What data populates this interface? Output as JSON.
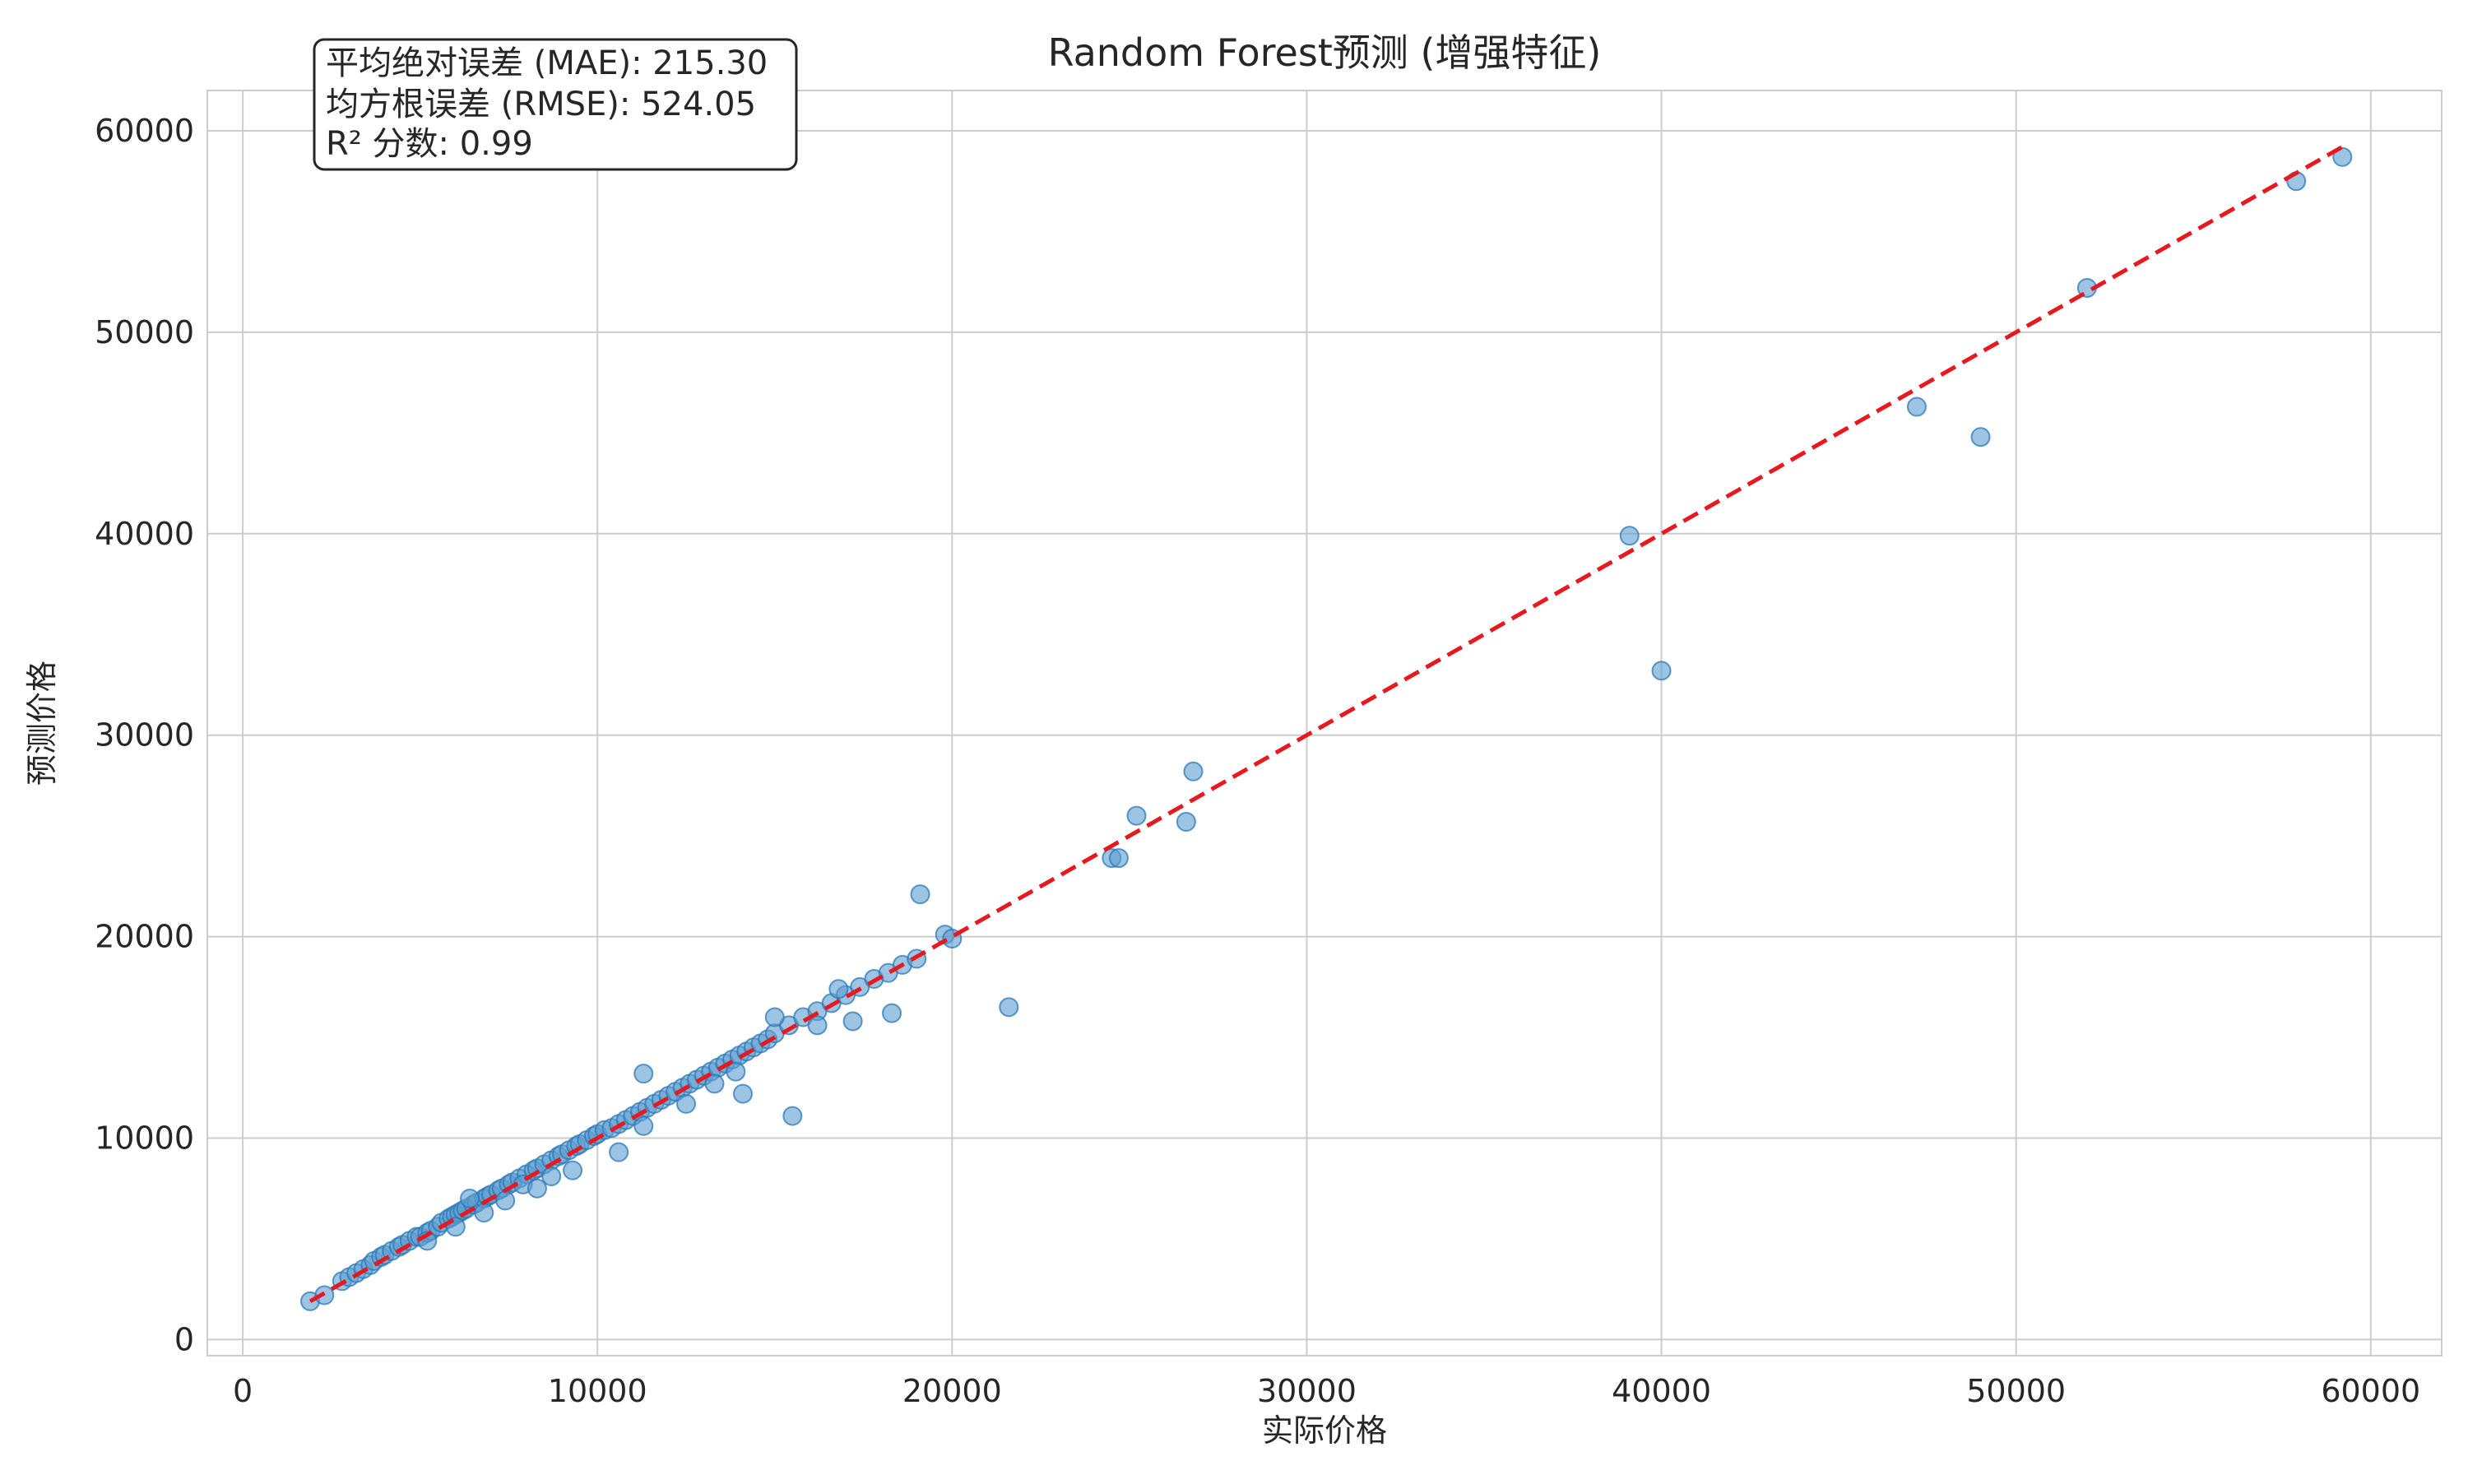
{
  "chart_data": {
    "type": "scatter",
    "title": "Random Forest预测 (增强特征)",
    "xlabel": "实际价格",
    "ylabel": "预测价格",
    "xlim": [
      -1000,
      62000
    ],
    "ylim": [
      -800,
      62000
    ],
    "xticks": [
      0,
      10000,
      20000,
      30000,
      40000,
      50000,
      60000
    ],
    "yticks": [
      0,
      10000,
      20000,
      30000,
      40000,
      50000,
      60000
    ],
    "x_tick_labels": [
      "0",
      "10000",
      "20000",
      "30000",
      "40000",
      "50000",
      "60000"
    ],
    "y_tick_labels": [
      "0",
      "10000",
      "20000",
      "30000",
      "40000",
      "50000",
      "60000"
    ],
    "grid": true,
    "annotation_box": {
      "position": "top-left",
      "lines": [
        "平均绝对误差 (MAE): 215.30",
        "均方根误差 (RMSE): 524.05",
        "R² 分数: 0.99"
      ]
    },
    "reference_line": {
      "style": "dashed",
      "color": "#e6191f",
      "from": [
        1900,
        1900
      ],
      "to": [
        59200,
        59200
      ]
    },
    "series": [
      {
        "marker_color": "#5c9ed1",
        "marker_edge": "#2b77b4",
        "x": [
          1900,
          2300,
          2800,
          3000,
          3200,
          3400,
          3600,
          3700,
          3900,
          4000,
          4200,
          4400,
          4500,
          4700,
          4900,
          5000,
          5200,
          5300,
          5500,
          5600,
          5800,
          5900,
          6000,
          6100,
          6200,
          6300,
          6500,
          6600,
          6800,
          6900,
          7000,
          7200,
          7300,
          7500,
          7600,
          7800,
          8000,
          8200,
          8300,
          8500,
          8700,
          8900,
          9000,
          9200,
          9400,
          9500,
          9700,
          9900,
          10000,
          10200,
          10400,
          10600,
          10800,
          11000,
          11200,
          11400,
          11600,
          11800,
          12000,
          12200,
          12400,
          12600,
          12800,
          13000,
          13200,
          13400,
          13600,
          13800,
          14000,
          14200,
          14400,
          14600,
          14800,
          15000,
          15400,
          15800,
          16200,
          16600,
          17000,
          17400,
          17800,
          18200,
          18600,
          19000,
          19800,
          20000,
          5200,
          6000,
          6400,
          6800,
          7400,
          7900,
          8300,
          8700,
          9300,
          10600,
          11300,
          11300,
          12500,
          13300,
          13900,
          14100,
          15000,
          15500,
          16200,
          16800,
          17200,
          18300,
          19100,
          21600,
          24500,
          24700,
          25200,
          26600,
          26800,
          39100,
          40000,
          47200,
          49000,
          52000,
          57900,
          59200
        ],
        "y": [
          1900,
          2200,
          2900,
          3100,
          3300,
          3500,
          3700,
          3900,
          4100,
          4200,
          4400,
          4600,
          4700,
          4900,
          5100,
          5100,
          5300,
          5400,
          5600,
          5800,
          6000,
          6100,
          6200,
          6300,
          6400,
          6500,
          6700,
          6800,
          7000,
          7100,
          7200,
          7400,
          7500,
          7700,
          7800,
          8000,
          8200,
          8400,
          8500,
          8700,
          8900,
          9100,
          9200,
          9400,
          9600,
          9700,
          9900,
          10100,
          10200,
          10400,
          10500,
          10700,
          10900,
          11100,
          11300,
          11500,
          11700,
          11900,
          12100,
          12300,
          12500,
          12700,
          12900,
          13100,
          13300,
          13500,
          13700,
          13900,
          14100,
          14300,
          14500,
          14700,
          14900,
          15200,
          15600,
          16000,
          16300,
          16700,
          17100,
          17500,
          17900,
          18200,
          18600,
          18900,
          20100,
          19900,
          4900,
          5600,
          7000,
          6300,
          6900,
          7700,
          7500,
          8100,
          8400,
          9300,
          13200,
          10600,
          11700,
          12700,
          13300,
          12200,
          16000,
          11100,
          15600,
          17400,
          15800,
          16200,
          22100,
          16500,
          23900,
          23900,
          26000,
          25700,
          28200,
          39900,
          33200,
          46300,
          44800,
          52200,
          57500,
          58700
        ]
      }
    ]
  }
}
